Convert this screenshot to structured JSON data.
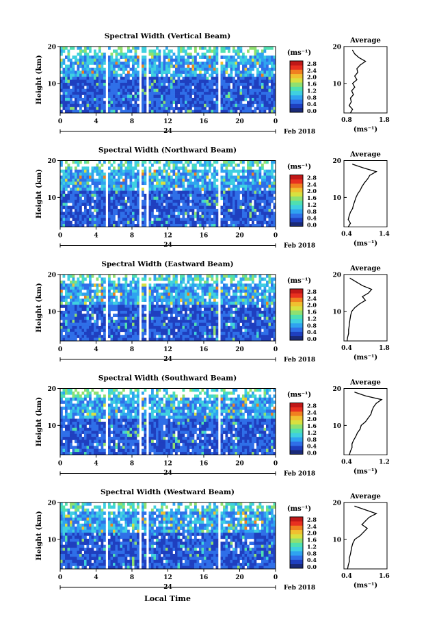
{
  "figure": {
    "xlabel_bottom": "Local Time"
  },
  "colorbar": {
    "unit_label": "(ms⁻¹)",
    "ticks": [
      "2.8",
      "2.4",
      "2.0",
      "1.6",
      "1.2",
      "0.8",
      "0.4",
      "0.0"
    ],
    "colors": [
      "#1a2a78",
      "#1f3fbf",
      "#2f6fe8",
      "#2fa3f0",
      "#3fd0e0",
      "#4fe0b0",
      "#8fe070",
      "#d8e040",
      "#f0c030",
      "#f08020",
      "#e83020",
      "#c01818"
    ]
  },
  "chart_data": [
    {
      "type": "heatmap",
      "title": "Spectral Width (Vertical Beam)",
      "ylabel": "Height (km)",
      "yticks": [
        "20",
        "10"
      ],
      "ylim": [
        2,
        20
      ],
      "xticks": [
        "0",
        "4",
        "8",
        "12",
        "16",
        "20",
        "0"
      ],
      "xlim": [
        0,
        24
      ],
      "date_tick": "24",
      "date_label": "Feb 2018",
      "gaps_hours": [
        [
          3.9,
          4.1
        ],
        [
          5.0,
          5.3
        ],
        [
          8.9,
          9.2
        ],
        [
          9.6,
          9.9
        ],
        [
          17.7,
          17.9
        ]
      ],
      "profile": {
        "title": "Average",
        "xlabel": "(ms⁻¹)",
        "xticks": [
          "0.8",
          "1.8"
        ],
        "xlim": [
          0.8,
          1.8
        ],
        "yticks": [
          "20",
          "10"
        ],
        "heights_km": [
          2,
          3,
          4,
          5,
          6,
          7,
          8,
          9,
          10,
          11,
          12,
          13,
          14,
          15,
          16,
          17,
          18,
          19
        ],
        "values": [
          0.95,
          1.0,
          0.92,
          0.97,
          0.95,
          1.02,
          0.98,
          1.05,
          1.0,
          1.1,
          1.05,
          1.12,
          1.1,
          1.18,
          1.3,
          1.15,
          1.05,
          1.0
        ]
      }
    },
    {
      "type": "heatmap",
      "title": "Spectral Width (Northward Beam)",
      "ylabel": "Height (km)",
      "yticks": [
        "20",
        "10"
      ],
      "ylim": [
        2,
        20
      ],
      "xticks": [
        "0",
        "4",
        "8",
        "12",
        "16",
        "20",
        "0"
      ],
      "xlim": [
        0,
        24
      ],
      "date_tick": "24",
      "date_label": "Feb 2018",
      "gaps_hours": [
        [
          3.9,
          4.1
        ],
        [
          5.0,
          5.3
        ],
        [
          8.9,
          9.2
        ],
        [
          9.6,
          9.9
        ],
        [
          17.7,
          17.9
        ]
      ],
      "profile": {
        "title": "Average",
        "xlabel": "(ms⁻¹)",
        "xticks": [
          "0.4",
          "1.4"
        ],
        "xlim": [
          0.4,
          1.4
        ],
        "yticks": [
          "20",
          "10"
        ],
        "heights_km": [
          2,
          3,
          4,
          5,
          6,
          7,
          8,
          9,
          10,
          11,
          12,
          13,
          14,
          15,
          16,
          17,
          18,
          19
        ],
        "values": [
          0.5,
          0.55,
          0.5,
          0.52,
          0.55,
          0.6,
          0.62,
          0.65,
          0.68,
          0.72,
          0.78,
          0.82,
          0.88,
          0.95,
          1.0,
          1.15,
          0.85,
          0.6
        ]
      }
    },
    {
      "type": "heatmap",
      "title": "Spectral Width (Eastward Beam)",
      "ylabel": "Height (km)",
      "yticks": [
        "20",
        "10"
      ],
      "ylim": [
        2,
        20
      ],
      "xticks": [
        "0",
        "4",
        "8",
        "12",
        "16",
        "20",
        "0"
      ],
      "xlim": [
        0,
        24
      ],
      "date_tick": "24",
      "date_label": "Feb 2018",
      "gaps_hours": [
        [
          3.9,
          4.1
        ],
        [
          5.0,
          5.3
        ],
        [
          8.9,
          9.2
        ],
        [
          9.6,
          9.9
        ],
        [
          17.7,
          17.9
        ]
      ],
      "profile": {
        "title": "Average",
        "xlabel": "(ms⁻¹)",
        "xticks": [
          "0.4",
          "1.8"
        ],
        "xlim": [
          0.4,
          1.8
        ],
        "yticks": [
          "20",
          "10"
        ],
        "heights_km": [
          2,
          3,
          4,
          5,
          6,
          7,
          8,
          9,
          10,
          11,
          12,
          13,
          14,
          15,
          16,
          17,
          18,
          19
        ],
        "values": [
          0.5,
          0.52,
          0.55,
          0.55,
          0.57,
          0.58,
          0.6,
          0.62,
          0.65,
          0.75,
          0.9,
          1.1,
          1.0,
          1.2,
          1.3,
          1.0,
          0.8,
          0.6
        ]
      }
    },
    {
      "type": "heatmap",
      "title": "Spectral Width (Southward Beam)",
      "ylabel": "Height (km)",
      "yticks": [
        "20",
        "10"
      ],
      "ylim": [
        2,
        20
      ],
      "xticks": [
        "0",
        "4",
        "8",
        "12",
        "16",
        "20",
        "0"
      ],
      "xlim": [
        0,
        24
      ],
      "date_tick": "24",
      "date_label": "Feb 2018",
      "gaps_hours": [
        [
          3.9,
          4.1
        ],
        [
          5.0,
          5.3
        ],
        [
          8.9,
          9.2
        ],
        [
          9.6,
          9.9
        ],
        [
          17.7,
          17.9
        ]
      ],
      "profile": {
        "title": "Average",
        "xlabel": "(ms⁻¹)",
        "xticks": [
          "0.4",
          "1.2"
        ],
        "xlim": [
          0.4,
          1.2
        ],
        "yticks": [
          "20",
          "10"
        ],
        "heights_km": [
          2,
          3,
          4,
          5,
          6,
          7,
          8,
          9,
          10,
          11,
          12,
          13,
          14,
          15,
          16,
          17,
          18,
          19
        ],
        "values": [
          0.5,
          0.52,
          0.55,
          0.55,
          0.58,
          0.62,
          0.65,
          0.7,
          0.72,
          0.8,
          0.85,
          0.9,
          0.92,
          0.95,
          1.0,
          1.1,
          0.8,
          0.6
        ]
      }
    },
    {
      "type": "heatmap",
      "title": "Spectral Width (Westward Beam)",
      "ylabel": "Height (km)",
      "yticks": [
        "20",
        "10"
      ],
      "ylim": [
        2,
        20
      ],
      "xticks": [
        "0",
        "4",
        "8",
        "12",
        "16",
        "20",
        "0"
      ],
      "xlim": [
        0,
        24
      ],
      "date_tick": "24",
      "date_label": "Feb 2018",
      "gaps_hours": [
        [
          3.9,
          4.1
        ],
        [
          5.0,
          5.3
        ],
        [
          8.9,
          9.2
        ],
        [
          9.6,
          9.9
        ],
        [
          17.7,
          17.9
        ]
      ],
      "profile": {
        "title": "Average",
        "xlabel": "(ms⁻¹)",
        "xticks": [
          "0.4",
          "1.6"
        ],
        "xlim": [
          0.4,
          1.6
        ],
        "yticks": [
          "20",
          "10"
        ],
        "heights_km": [
          2,
          3,
          4,
          5,
          6,
          7,
          8,
          9,
          10,
          11,
          12,
          13,
          14,
          15,
          16,
          17,
          18,
          19
        ],
        "values": [
          0.5,
          0.52,
          0.55,
          0.55,
          0.58,
          0.6,
          0.62,
          0.65,
          0.7,
          0.85,
          0.95,
          1.05,
          0.9,
          1.0,
          1.1,
          1.3,
          1.0,
          0.7
        ]
      }
    }
  ]
}
